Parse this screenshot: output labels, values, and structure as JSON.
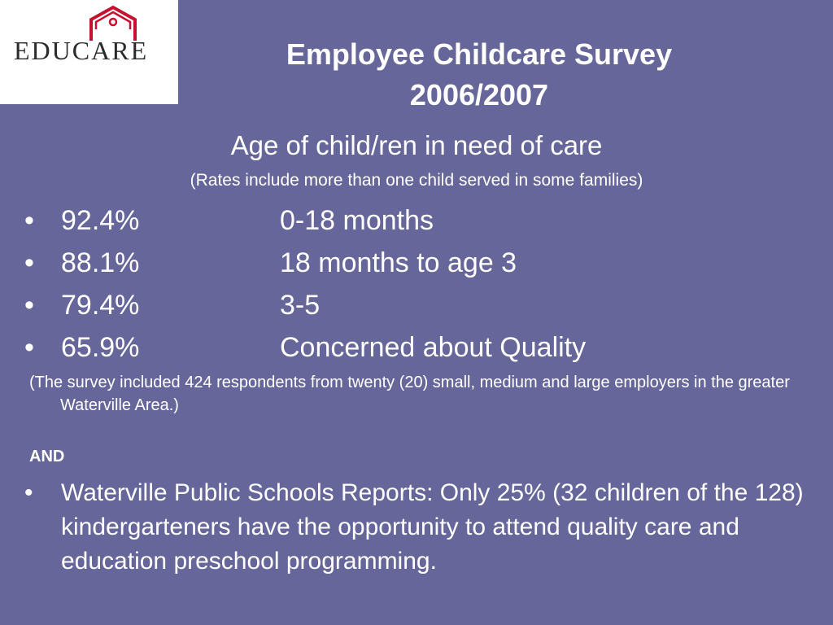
{
  "logo": {
    "text": "EDUCARE"
  },
  "title_lines": [
    "Employee Childcare Survey",
    "2006/2007"
  ],
  "subtitle": "Age of child/ren in need of care",
  "rates_note": "(Rates include more than one child served in some families)",
  "bullet_glyph": "•",
  "stats": [
    {
      "percent": "92.4%",
      "label": "0-18 months"
    },
    {
      "percent": "88.1%",
      "label": "18 months to age 3"
    },
    {
      "percent": "79.4%",
      "label": "3-5"
    },
    {
      "percent": "65.9%",
      "label": "Concerned about Quality"
    }
  ],
  "survey_note": "(The survey included 424 respondents from twenty (20) small, medium and large employers in the greater Waterville Area.)",
  "and_label": "AND",
  "final_bullet": "Waterville Public Schools Reports: Only 25% (32 children of the 128) kindergarteners have the opportunity to attend quality care and education preschool programming.",
  "colors": {
    "background": "#66669a",
    "logo_red": "#c8102e",
    "text": "#ffffff"
  }
}
